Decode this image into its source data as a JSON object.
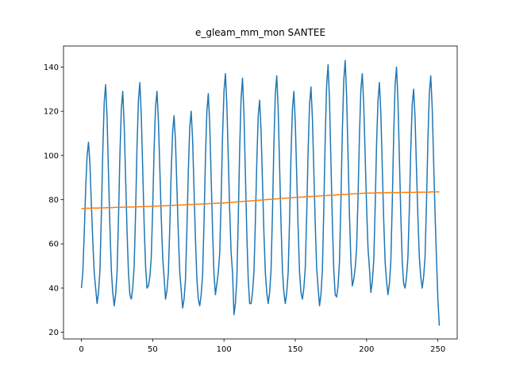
{
  "chart_data": {
    "type": "line",
    "title": "e_gleam_mm_mon SANTEE",
    "x": [
      0,
      1,
      2,
      3,
      4,
      5,
      6,
      7,
      8,
      9,
      10,
      11,
      12,
      13,
      14,
      15,
      16,
      17,
      18,
      19,
      20,
      21,
      22,
      23,
      24,
      25,
      26,
      27,
      28,
      29,
      30,
      31,
      32,
      33,
      34,
      35,
      36,
      37,
      38,
      39,
      40,
      41,
      42,
      43,
      44,
      45,
      46,
      47,
      48,
      49,
      50,
      51,
      52,
      53,
      54,
      55,
      56,
      57,
      58,
      59,
      60,
      61,
      62,
      63,
      64,
      65,
      66,
      67,
      68,
      69,
      70,
      71,
      72,
      73,
      74,
      75,
      76,
      77,
      78,
      79,
      80,
      81,
      82,
      83,
      84,
      85,
      86,
      87,
      88,
      89,
      90,
      91,
      92,
      93,
      94,
      95,
      96,
      97,
      98,
      99,
      100,
      101,
      102,
      103,
      104,
      105,
      106,
      107,
      108,
      109,
      110,
      111,
      112,
      113,
      114,
      115,
      116,
      117,
      118,
      119,
      120,
      121,
      122,
      123,
      124,
      125,
      126,
      127,
      128,
      129,
      130,
      131,
      132,
      133,
      134,
      135,
      136,
      137,
      138,
      139,
      140,
      141,
      142,
      143,
      144,
      145,
      146,
      147,
      148,
      149,
      150,
      151,
      152,
      153,
      154,
      155,
      156,
      157,
      158,
      159,
      160,
      161,
      162,
      163,
      164,
      165,
      166,
      167,
      168,
      169,
      170,
      171,
      172,
      173,
      174,
      175,
      176,
      177,
      178,
      179,
      180,
      181,
      182,
      183,
      184,
      185,
      186,
      187,
      188,
      189,
      190,
      191,
      192,
      193,
      194,
      195,
      196,
      197,
      198,
      199,
      200,
      201,
      202,
      203,
      204,
      205,
      206,
      207,
      208,
      209,
      210,
      211,
      212,
      213,
      214,
      215,
      216,
      217,
      218,
      219,
      220,
      221,
      222,
      223,
      224,
      225,
      226,
      227,
      228,
      229,
      230,
      231,
      232,
      233,
      234,
      235,
      236,
      237,
      238,
      239,
      240,
      241,
      242,
      243,
      244,
      245,
      246,
      247,
      248,
      249,
      250,
      251
    ],
    "series": [
      {
        "color": "#1f77b4",
        "values": [
          40,
          47,
          65,
          85,
          100,
          106,
          96,
          78,
          61,
          47,
          40,
          33,
          38,
          48,
          73,
          102,
          124,
          132,
          117,
          92,
          68,
          48,
          38,
          32,
          37,
          47,
          71,
          100,
          121,
          129,
          114,
          90,
          66,
          47,
          37,
          35,
          40,
          50,
          74,
          104,
          125,
          133,
          118,
          94,
          69,
          50,
          40,
          41,
          45,
          54,
          76,
          103,
          122,
          129,
          116,
          94,
          72,
          54,
          45,
          35,
          39,
          47,
          68,
          93,
          111,
          118,
          106,
          85,
          64,
          47,
          39,
          31,
          35,
          44,
          67,
          93,
          113,
          120,
          107,
          84,
          62,
          44,
          35,
          32,
          37,
          46,
          70,
          99,
          120,
          128,
          114,
          90,
          66,
          46,
          37,
          42,
          47,
          56,
          80,
          109,
          129,
          137,
          123,
          99,
          75,
          56,
          47,
          28,
          33,
          44,
          71,
          103,
          126,
          135,
          119,
          92,
          65,
          44,
          33,
          33,
          38,
          47,
          70,
          97,
          118,
          125,
          111,
          88,
          65,
          47,
          38,
          33,
          38,
          48,
          74,
          105,
          128,
          136,
          121,
          95,
          69,
          48,
          38,
          33,
          38,
          47,
          71,
          100,
          121,
          129,
          115,
          91,
          67,
          47,
          38,
          35,
          40,
          49,
          73,
          102,
          123,
          131,
          117,
          93,
          69,
          49,
          40,
          32,
          37,
          48,
          76,
          108,
          132,
          141,
          125,
          97,
          70,
          48,
          37,
          36,
          41,
          52,
          79,
          111,
          134,
          143,
          127,
          100,
          73,
          52,
          41,
          44,
          49,
          58,
          81,
          109,
          130,
          137,
          123,
          100,
          77,
          58,
          49,
          38,
          43,
          52,
          76,
          105,
          125,
          133,
          119,
          95,
          71,
          52,
          43,
          37,
          42,
          52,
          78,
          109,
          132,
          140,
          125,
          99,
          73,
          52,
          42,
          40,
          45,
          54,
          76,
          103,
          123,
          130,
          117,
          94,
          72,
          54,
          45,
          40,
          45,
          54,
          78,
          107,
          128,
          136,
          122,
          98,
          74,
          54,
          35,
          23
        ]
      },
      {
        "color": "#ff7f0e",
        "values": [
          76,
          76,
          76,
          76.1,
          76.1,
          76.1,
          76.1,
          76.1,
          76.2,
          76.2,
          76.2,
          76.2,
          76.2,
          76.3,
          76.3,
          76.3,
          76.3,
          76.3,
          76.4,
          76.4,
          76.4,
          76.4,
          76.4,
          76.5,
          76.5,
          76.5,
          76.5,
          76.5,
          76.6,
          76.6,
          76.6,
          76.6,
          76.6,
          76.7,
          76.7,
          76.7,
          76.7,
          76.7,
          76.8,
          76.8,
          76.8,
          76.8,
          76.8,
          76.9,
          76.9,
          76.9,
          76.9,
          76.9,
          77,
          77,
          77,
          77,
          77.1,
          77.1,
          77.1,
          77.2,
          77.2,
          77.2,
          77.2,
          77.3,
          77.3,
          77.3,
          77.4,
          77.4,
          77.4,
          77.5,
          77.5,
          77.5,
          77.5,
          77.6,
          77.6,
          77.6,
          77.7,
          77.7,
          77.7,
          77.8,
          77.8,
          77.8,
          77.8,
          77.9,
          77.9,
          77.9,
          78,
          78,
          78,
          78.1,
          78.1,
          78.1,
          78.1,
          78.2,
          78.2,
          78.2,
          78.3,
          78.3,
          78.3,
          78.4,
          78.4,
          78.4,
          78.4,
          78.5,
          78.5,
          78.6,
          78.6,
          78.7,
          78.7,
          78.8,
          78.8,
          78.9,
          78.9,
          79,
          79,
          79.1,
          79.1,
          79.2,
          79.2,
          79.3,
          79.3,
          79.4,
          79.4,
          79.5,
          79.5,
          79.6,
          79.6,
          79.7,
          79.7,
          79.8,
          79.8,
          79.9,
          79.9,
          80,
          80,
          80.1,
          80.1,
          80.2,
          80.2,
          80.3,
          80.3,
          80.4,
          80.4,
          80.5,
          80.5,
          80.6,
          80.6,
          80.7,
          80.7,
          80.8,
          80.8,
          80.9,
          80.9,
          81,
          81,
          81,
          81.1,
          81.1,
          81.2,
          81.2,
          81.2,
          81.3,
          81.3,
          81.4,
          81.4,
          81.4,
          81.5,
          81.5,
          81.6,
          81.6,
          81.6,
          81.7,
          81.7,
          81.8,
          81.8,
          81.8,
          81.9,
          81.9,
          82,
          82,
          82,
          82.1,
          82.1,
          82.2,
          82.2,
          82.2,
          82.3,
          82.3,
          82.4,
          82.4,
          82.4,
          82.5,
          82.5,
          82.6,
          82.6,
          82.6,
          82.7,
          82.7,
          82.8,
          82.8,
          82.8,
          82.9,
          82.9,
          83,
          83,
          83,
          83,
          83,
          83,
          83,
          83.1,
          83.1,
          83.1,
          83.1,
          83.1,
          83.1,
          83.1,
          83.1,
          83.1,
          83.2,
          83.2,
          83.2,
          83.2,
          83.2,
          83.2,
          83.2,
          83.2,
          83.2,
          83.2,
          83.3,
          83.3,
          83.3,
          83.3,
          83.3,
          83.3,
          83.3,
          83.3,
          83.3,
          83.3,
          83.4,
          83.4,
          83.4,
          83.4,
          83.4,
          83.4,
          83.4,
          83.4,
          83.4,
          83.4,
          83.5,
          83.5,
          83.5,
          83.5,
          83.5,
          83.5,
          83.5
        ]
      }
    ],
    "xlim": [
      -12.55,
      263.55
    ],
    "xticks": [
      0,
      50,
      100,
      150,
      200,
      250
    ],
    "ylim": [
      17,
      149.5
    ],
    "yticks": [
      20,
      40,
      60,
      80,
      100,
      120,
      140
    ],
    "grid": false
  }
}
